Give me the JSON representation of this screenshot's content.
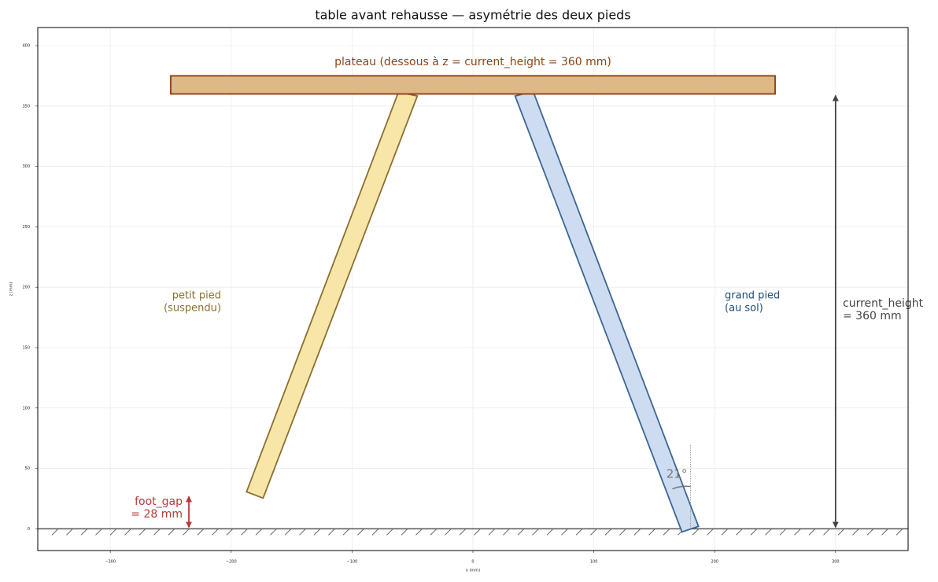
{
  "chart_data": {
    "type": "diagram",
    "title": "table avant rehausse — asymétrie des deux pieds",
    "xlabel": "x (mm)",
    "ylabel": "z (mm)",
    "xlim": [
      -360,
      360
    ],
    "ylim": [
      -18,
      415
    ],
    "xticks": [
      {
        "value": -300,
        "label": "−300"
      },
      {
        "value": -200,
        "label": "−200"
      },
      {
        "value": -100,
        "label": "−100"
      },
      0,
      100,
      200,
      300
    ],
    "yticks": [
      0,
      50,
      100,
      150,
      200,
      250,
      300,
      350,
      400
    ],
    "grid": true,
    "annotations": {
      "plateau": "plateau (dessous à z = current_height = 360 mm)",
      "petit_pied": [
        "petit pied",
        "(suspendu)"
      ],
      "grand_pied": [
        "grand pied",
        "(au sol)"
      ],
      "current_height": [
        "current_height",
        "= 360 mm"
      ],
      "foot_gap": [
        "foot_gap",
        "= 28 mm"
      ],
      "angle": "21°"
    }
  }
}
